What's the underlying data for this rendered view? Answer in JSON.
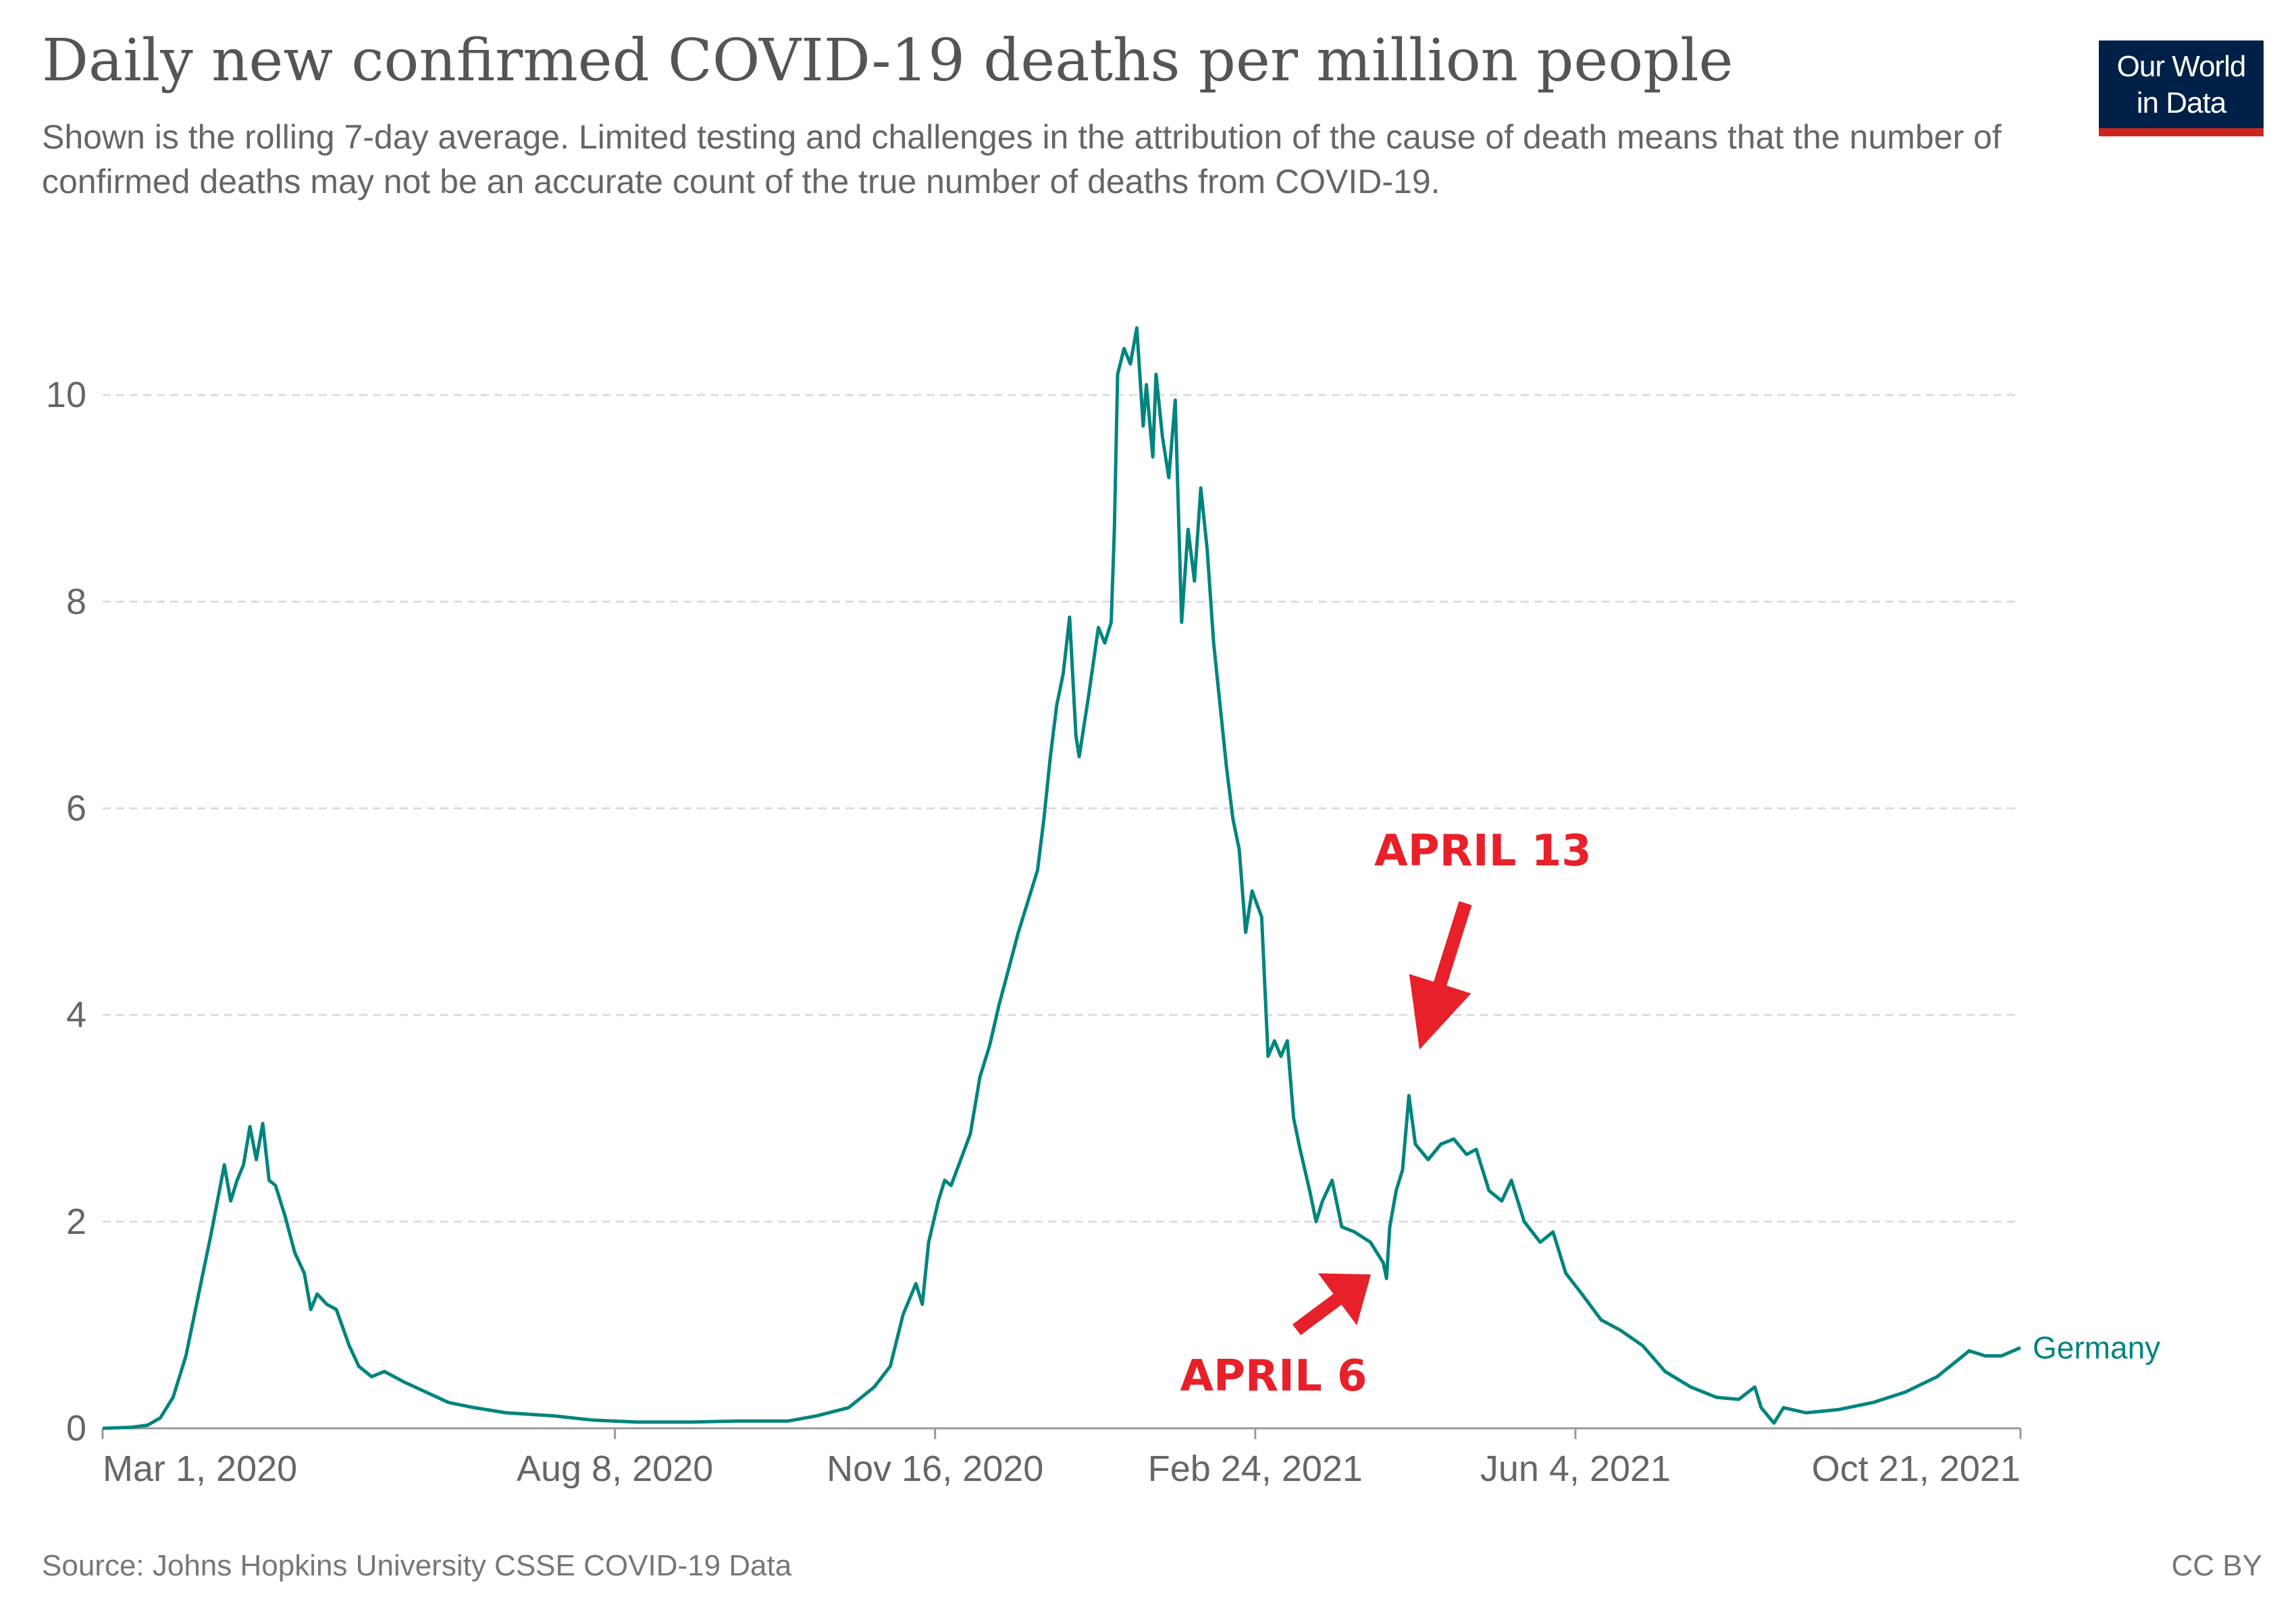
{
  "header": {
    "title": "Daily new confirmed COVID-19 deaths per million people",
    "subtitle": "Shown is the rolling 7-day average. Limited testing and challenges in the attribution of the cause of death means that the number of confirmed deaths may not be an accurate count of the true number of deaths from COVID-19."
  },
  "logo": {
    "line1": "Our World",
    "line2": "in Data",
    "bg_color": "#002147",
    "bar_color": "#ce261e"
  },
  "footer": {
    "source": "Source: Johns Hopkins University CSSE COVID-19 Data",
    "license": "CC BY"
  },
  "annotations": [
    {
      "text": "APRIL 13",
      "date": "2021-04-13",
      "color": "#e8202a"
    },
    {
      "text": "APRIL 6",
      "date": "2021-04-06",
      "color": "#e8202a"
    }
  ],
  "chart_data": {
    "type": "line",
    "title": "Daily new confirmed COVID-19 deaths per million people",
    "ylim": [
      0,
      10
    ],
    "yticks": [
      "0",
      "2",
      "4",
      "6",
      "8",
      "10"
    ],
    "xticks": [
      {
        "label": "Mar 1, 2020",
        "date": "2020-03-01"
      },
      {
        "label": "Aug 8, 2020",
        "date": "2020-08-08"
      },
      {
        "label": "Nov 16, 2020",
        "date": "2020-11-16"
      },
      {
        "label": "Feb 24, 2021",
        "date": "2021-02-24"
      },
      {
        "label": "Jun 4, 2021",
        "date": "2021-06-04"
      },
      {
        "label": "Oct 21, 2021",
        "date": "2021-10-21"
      }
    ],
    "grid": "horizontal dashed",
    "series": [
      {
        "name": "Germany",
        "color": "#00847e",
        "points": [
          [
            "2020-03-01",
            0.0
          ],
          [
            "2020-03-10",
            0.01
          ],
          [
            "2020-03-15",
            0.03
          ],
          [
            "2020-03-19",
            0.1
          ],
          [
            "2020-03-23",
            0.3
          ],
          [
            "2020-03-27",
            0.7
          ],
          [
            "2020-03-31",
            1.3
          ],
          [
            "2020-04-04",
            1.9
          ],
          [
            "2020-04-08",
            2.55
          ],
          [
            "2020-04-10",
            2.2
          ],
          [
            "2020-04-12",
            2.4
          ],
          [
            "2020-04-14",
            2.55
          ],
          [
            "2020-04-16",
            2.92
          ],
          [
            "2020-04-18",
            2.6
          ],
          [
            "2020-04-20",
            2.95
          ],
          [
            "2020-04-22",
            2.4
          ],
          [
            "2020-04-24",
            2.35
          ],
          [
            "2020-04-27",
            2.05
          ],
          [
            "2020-04-30",
            1.7
          ],
          [
            "2020-05-03",
            1.5
          ],
          [
            "2020-05-05",
            1.15
          ],
          [
            "2020-05-07",
            1.3
          ],
          [
            "2020-05-10",
            1.2
          ],
          [
            "2020-05-13",
            1.15
          ],
          [
            "2020-05-17",
            0.8
          ],
          [
            "2020-05-20",
            0.6
          ],
          [
            "2020-05-24",
            0.5
          ],
          [
            "2020-05-28",
            0.55
          ],
          [
            "2020-06-03",
            0.45
          ],
          [
            "2020-06-10",
            0.35
          ],
          [
            "2020-06-17",
            0.25
          ],
          [
            "2020-06-25",
            0.2
          ],
          [
            "2020-07-05",
            0.15
          ],
          [
            "2020-07-20",
            0.12
          ],
          [
            "2020-08-01",
            0.08
          ],
          [
            "2020-08-15",
            0.06
          ],
          [
            "2020-09-01",
            0.06
          ],
          [
            "2020-09-15",
            0.07
          ],
          [
            "2020-10-01",
            0.07
          ],
          [
            "2020-10-10",
            0.12
          ],
          [
            "2020-10-20",
            0.2
          ],
          [
            "2020-10-28",
            0.4
          ],
          [
            "2020-11-02",
            0.6
          ],
          [
            "2020-11-06",
            1.1
          ],
          [
            "2020-11-10",
            1.4
          ],
          [
            "2020-11-12",
            1.2
          ],
          [
            "2020-11-14",
            1.8
          ],
          [
            "2020-11-17",
            2.2
          ],
          [
            "2020-11-19",
            2.4
          ],
          [
            "2020-11-21",
            2.35
          ],
          [
            "2020-11-24",
            2.6
          ],
          [
            "2020-11-27",
            2.85
          ],
          [
            "2020-11-30",
            3.4
          ],
          [
            "2020-12-03",
            3.7
          ],
          [
            "2020-12-06",
            4.1
          ],
          [
            "2020-12-09",
            4.45
          ],
          [
            "2020-12-12",
            4.8
          ],
          [
            "2020-12-15",
            5.1
          ],
          [
            "2020-12-18",
            5.4
          ],
          [
            "2020-12-20",
            5.9
          ],
          [
            "2020-12-22",
            6.5
          ],
          [
            "2020-12-24",
            7.0
          ],
          [
            "2020-12-26",
            7.3
          ],
          [
            "2020-12-28",
            7.85
          ],
          [
            "2020-12-30",
            6.7
          ],
          [
            "2020-12-31",
            6.5
          ],
          [
            "2021-01-03",
            7.1
          ],
          [
            "2021-01-06",
            7.75
          ],
          [
            "2021-01-08",
            7.6
          ],
          [
            "2021-01-10",
            7.8
          ],
          [
            "2021-01-11",
            8.7
          ],
          [
            "2021-01-12",
            10.2
          ],
          [
            "2021-01-14",
            10.45
          ],
          [
            "2021-01-16",
            10.3
          ],
          [
            "2021-01-18",
            10.65
          ],
          [
            "2021-01-20",
            9.7
          ],
          [
            "2021-01-21",
            10.1
          ],
          [
            "2021-01-23",
            9.4
          ],
          [
            "2021-01-24",
            10.2
          ],
          [
            "2021-01-26",
            9.6
          ],
          [
            "2021-01-28",
            9.2
          ],
          [
            "2021-01-30",
            9.95
          ],
          [
            "2021-02-01",
            7.8
          ],
          [
            "2021-02-03",
            8.7
          ],
          [
            "2021-02-05",
            8.2
          ],
          [
            "2021-02-07",
            9.1
          ],
          [
            "2021-02-09",
            8.5
          ],
          [
            "2021-02-11",
            7.6
          ],
          [
            "2021-02-13",
            7.0
          ],
          [
            "2021-02-15",
            6.4
          ],
          [
            "2021-02-17",
            5.9
          ],
          [
            "2021-02-19",
            5.6
          ],
          [
            "2021-02-21",
            4.8
          ],
          [
            "2021-02-23",
            5.2
          ],
          [
            "2021-02-26",
            4.95
          ],
          [
            "2021-02-28",
            3.6
          ],
          [
            "2021-03-02",
            3.75
          ],
          [
            "2021-03-04",
            3.6
          ],
          [
            "2021-03-06",
            3.75
          ],
          [
            "2021-03-08",
            3.0
          ],
          [
            "2021-03-10",
            2.7
          ],
          [
            "2021-03-13",
            2.3
          ],
          [
            "2021-03-15",
            2.0
          ],
          [
            "2021-03-17",
            2.2
          ],
          [
            "2021-03-20",
            2.4
          ],
          [
            "2021-03-23",
            1.95
          ],
          [
            "2021-03-27",
            1.9
          ],
          [
            "2021-04-01",
            1.8
          ],
          [
            "2021-04-05",
            1.6
          ],
          [
            "2021-04-06",
            1.45
          ],
          [
            "2021-04-07",
            1.95
          ],
          [
            "2021-04-09",
            2.3
          ],
          [
            "2021-04-11",
            2.5
          ],
          [
            "2021-04-13",
            3.22
          ],
          [
            "2021-04-15",
            2.75
          ],
          [
            "2021-04-19",
            2.6
          ],
          [
            "2021-04-23",
            2.75
          ],
          [
            "2021-04-27",
            2.8
          ],
          [
            "2021-05-01",
            2.65
          ],
          [
            "2021-05-04",
            2.7
          ],
          [
            "2021-05-08",
            2.3
          ],
          [
            "2021-05-12",
            2.2
          ],
          [
            "2021-05-15",
            2.4
          ],
          [
            "2021-05-19",
            2.0
          ],
          [
            "2021-05-24",
            1.8
          ],
          [
            "2021-05-28",
            1.9
          ],
          [
            "2021-06-01",
            1.5
          ],
          [
            "2021-06-06",
            1.3
          ],
          [
            "2021-06-12",
            1.05
          ],
          [
            "2021-06-18",
            0.95
          ],
          [
            "2021-06-25",
            0.8
          ],
          [
            "2021-07-02",
            0.55
          ],
          [
            "2021-07-10",
            0.4
          ],
          [
            "2021-07-18",
            0.3
          ],
          [
            "2021-07-25",
            0.28
          ],
          [
            "2021-07-30",
            0.4
          ],
          [
            "2021-08-01",
            0.2
          ],
          [
            "2021-08-05",
            0.05
          ],
          [
            "2021-08-08",
            0.2
          ],
          [
            "2021-08-15",
            0.15
          ],
          [
            "2021-08-25",
            0.18
          ],
          [
            "2021-09-05",
            0.25
          ],
          [
            "2021-09-15",
            0.35
          ],
          [
            "2021-09-25",
            0.5
          ],
          [
            "2021-10-01",
            0.65
          ],
          [
            "2021-10-05",
            0.75
          ],
          [
            "2021-10-10",
            0.7
          ],
          [
            "2021-10-15",
            0.7
          ],
          [
            "2021-10-21",
            0.78
          ]
        ]
      }
    ]
  }
}
